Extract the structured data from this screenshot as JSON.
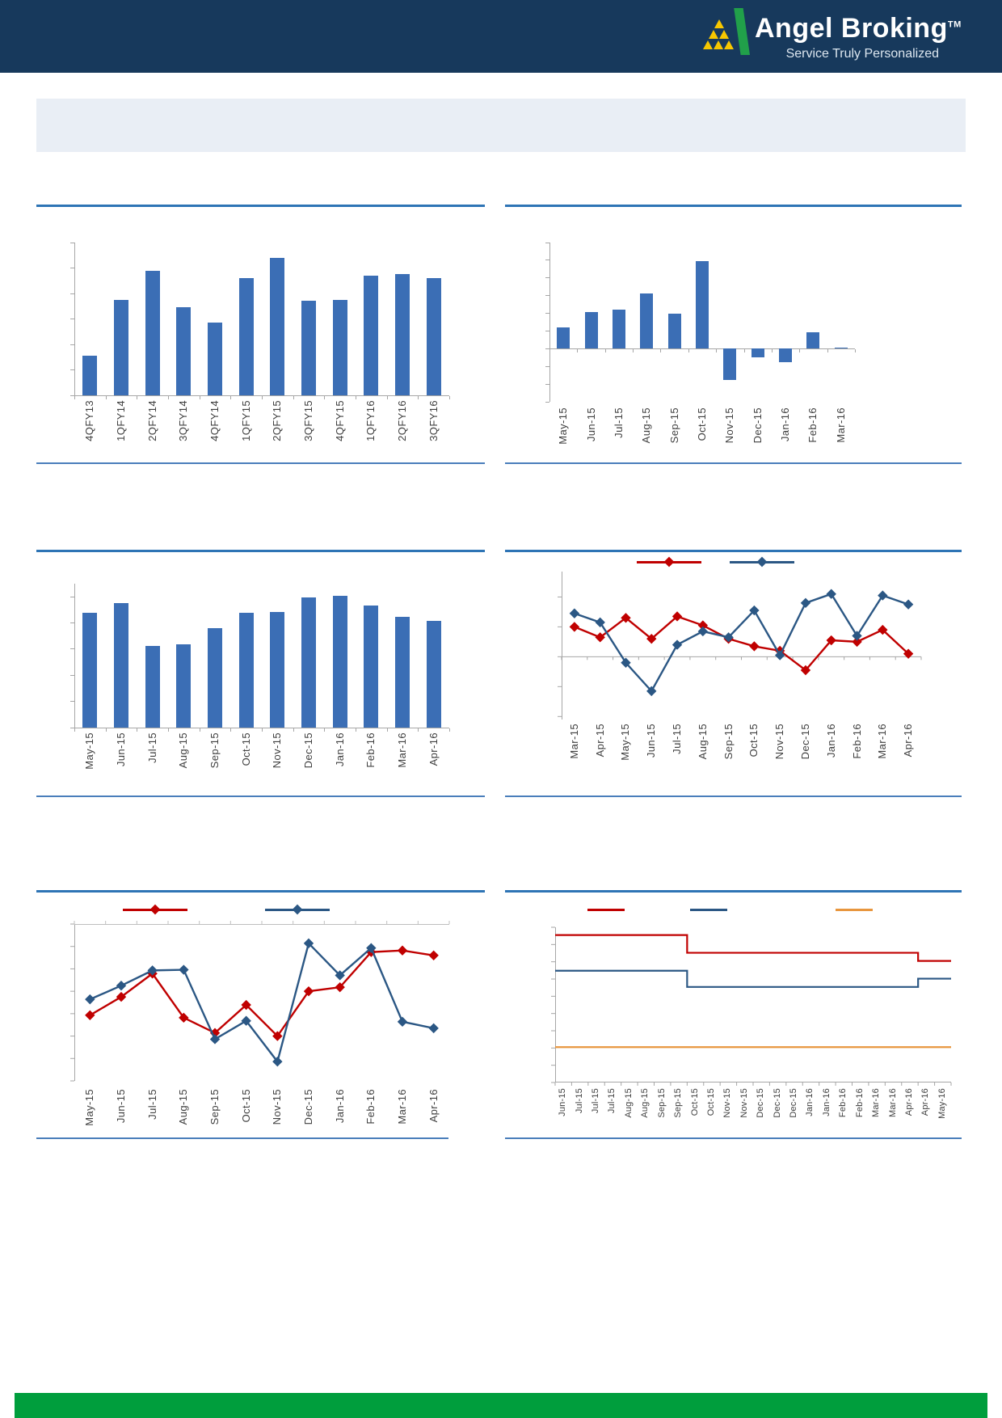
{
  "header": {
    "brand": "Angel Broking",
    "trademark": "TM",
    "tagline": "Service Truly Personalized",
    "bg_color": "#17395C",
    "logo_green": "#21A04A",
    "logo_yellow": "#F7C700"
  },
  "banner": {
    "bg_color": "#E9EEF5"
  },
  "footer": {
    "bg_color": "#009E3D"
  },
  "accent": {
    "title_underline": "#2E74B5",
    "separator_line": "#4A7EBB",
    "axis_gray": "#A6A6A6"
  },
  "chart_data": [
    {
      "type": "bar",
      "title": "",
      "categories": [
        "4QFY13",
        "1QFY14",
        "2QFY14",
        "3QFY14",
        "4QFY14",
        "1QFY15",
        "2QFY15",
        "3QFY15",
        "4QFY15",
        "1QFY16",
        "2QFY16",
        "3QFY16"
      ],
      "values": [
        1.55,
        3.75,
        4.9,
        3.45,
        2.85,
        4.6,
        5.4,
        3.7,
        3.75,
        4.7,
        4.75,
        4.6
      ],
      "bar_color": "#3B6EB5",
      "ylim": [
        0,
        6
      ],
      "grid": false,
      "legend_position": "none",
      "xlabel": "",
      "ylabel": ""
    },
    {
      "type": "bar",
      "title": "",
      "categories": [
        "May-15",
        "Jun-15",
        "Jul-15",
        "Aug-15",
        "Sep-15",
        "Oct-15",
        "Nov-15",
        "Dec-15",
        "Jan-16",
        "Feb-16",
        "Mar-16"
      ],
      "values": [
        1.2,
        2.05,
        2.2,
        3.1,
        2.0,
        4.95,
        -1.75,
        -0.5,
        -0.75,
        0.95,
        0.05
      ],
      "bar_color": "#3B6EB5",
      "ylim": [
        -3,
        6
      ],
      "grid": false,
      "legend_position": "none",
      "xlabel": "",
      "ylabel": ""
    },
    {
      "type": "bar",
      "title": "",
      "categories": [
        "May-15",
        "Jun-15",
        "Jul-15",
        "Aug-15",
        "Sep-15",
        "Oct-15",
        "Nov-15",
        "Dec-15",
        "Jan-16",
        "Feb-16",
        "Mar-16",
        "Apr-16"
      ],
      "values": [
        4.4,
        4.77,
        3.13,
        3.19,
        3.81,
        4.4,
        4.43,
        4.98,
        5.05,
        4.67,
        4.24,
        4.09
      ],
      "bar_color": "#3B6EB5",
      "ylim": [
        0,
        5.5
      ],
      "grid": false,
      "legend_position": "none",
      "xlabel": "",
      "ylabel": ""
    },
    {
      "type": "line",
      "title": "",
      "marker": "diamond",
      "categories": [
        "Mar-15",
        "Apr-15",
        "May-15",
        "Jun-15",
        "Jul-15",
        "Aug-15",
        "Sep-15",
        "Oct-15",
        "Nov-15",
        "Dec-15",
        "Jan-16",
        "Feb-16",
        "Mar-16",
        "Apr-16"
      ],
      "series": [
        {
          "name": "series-red",
          "color": "#C00000",
          "values": [
            1.0,
            0.65,
            1.3,
            0.6,
            1.35,
            1.05,
            0.6,
            0.35,
            0.2,
            -0.45,
            0.55,
            0.5,
            0.9,
            0.1
          ]
        },
        {
          "name": "series-blue",
          "color": "#2B5784",
          "values": [
            1.45,
            1.15,
            -0.2,
            -1.15,
            0.4,
            0.85,
            0.65,
            1.55,
            0.05,
            1.8,
            2.1,
            0.7,
            2.05,
            1.75
          ]
        }
      ],
      "ylim": [
        -2.1,
        2.85
      ],
      "grid": false,
      "legend_position": "top-center",
      "xlabel": "",
      "ylabel": ""
    },
    {
      "type": "line",
      "title": "",
      "marker": "diamond",
      "top_border": true,
      "categories": [
        "May-15",
        "Jun-15",
        "Jul-15",
        "Aug-15",
        "Sep-15",
        "Oct-15",
        "Nov-15",
        "Dec-15",
        "Jan-16",
        "Feb-16",
        "Mar-16",
        "Apr-16"
      ],
      "series": [
        {
          "name": "series-red",
          "color": "#C00000",
          "values": [
            2.93,
            3.75,
            4.79,
            2.82,
            2.14,
            3.39,
            2.0,
            4.0,
            4.18,
            5.75,
            5.82,
            5.6
          ]
        },
        {
          "name": "series-blue",
          "color": "#2B5784",
          "values": [
            3.64,
            4.25,
            4.93,
            4.96,
            1.86,
            2.68,
            0.86,
            6.14,
            4.71,
            5.93,
            2.64,
            2.35
          ]
        }
      ],
      "ylim": [
        0,
        7
      ],
      "grid": false,
      "legend_position": "top-center",
      "xlabel": "",
      "ylabel": ""
    },
    {
      "type": "line",
      "title": "",
      "marker": "none",
      "step": true,
      "bottom_axis": true,
      "categories": [
        "Jun-15",
        "Jul-15",
        "Jul-15",
        "Jul-15",
        "Aug-15",
        "Aug-15",
        "Sep-15",
        "Sep-15",
        "Oct-15",
        "Oct-15",
        "Nov-15",
        "Nov-15",
        "Dec-15",
        "Dec-15",
        "Dec-15",
        "Jan-16",
        "Jan-16",
        "Feb-16",
        "Feb-16",
        "Mar-16",
        "Mar-16",
        "Apr-16",
        "Apr-16",
        "May-16"
      ],
      "series": [
        {
          "name": "series-red",
          "color": "#C00000",
          "values": [
            8.55,
            8.55,
            8.55,
            8.55,
            8.55,
            8.55,
            8.55,
            8.55,
            7.52,
            7.52,
            7.52,
            7.52,
            7.52,
            7.52,
            7.52,
            7.52,
            7.52,
            7.52,
            7.52,
            7.52,
            7.52,
            7.52,
            7.05,
            7.05
          ]
        },
        {
          "name": "series-blue",
          "color": "#2B5784",
          "values": [
            6.48,
            6.48,
            6.48,
            6.48,
            6.48,
            6.48,
            6.48,
            6.48,
            5.54,
            5.54,
            5.54,
            5.54,
            5.54,
            5.54,
            5.54,
            5.54,
            5.54,
            5.54,
            5.54,
            5.54,
            5.54,
            5.54,
            6.02,
            6.02
          ]
        },
        {
          "name": "series-orange",
          "color": "#E8963E",
          "values": [
            2.05,
            2.05,
            2.05,
            2.05,
            2.05,
            2.05,
            2.05,
            2.05,
            2.05,
            2.05,
            2.05,
            2.05,
            2.05,
            2.05,
            2.05,
            2.05,
            2.05,
            2.05,
            2.05,
            2.05,
            2.05,
            2.05,
            2.05,
            2.05
          ]
        }
      ],
      "ylim": [
        0,
        9
      ],
      "grid": false,
      "legend_position": "top-center",
      "xlabel": "",
      "ylabel": ""
    }
  ]
}
